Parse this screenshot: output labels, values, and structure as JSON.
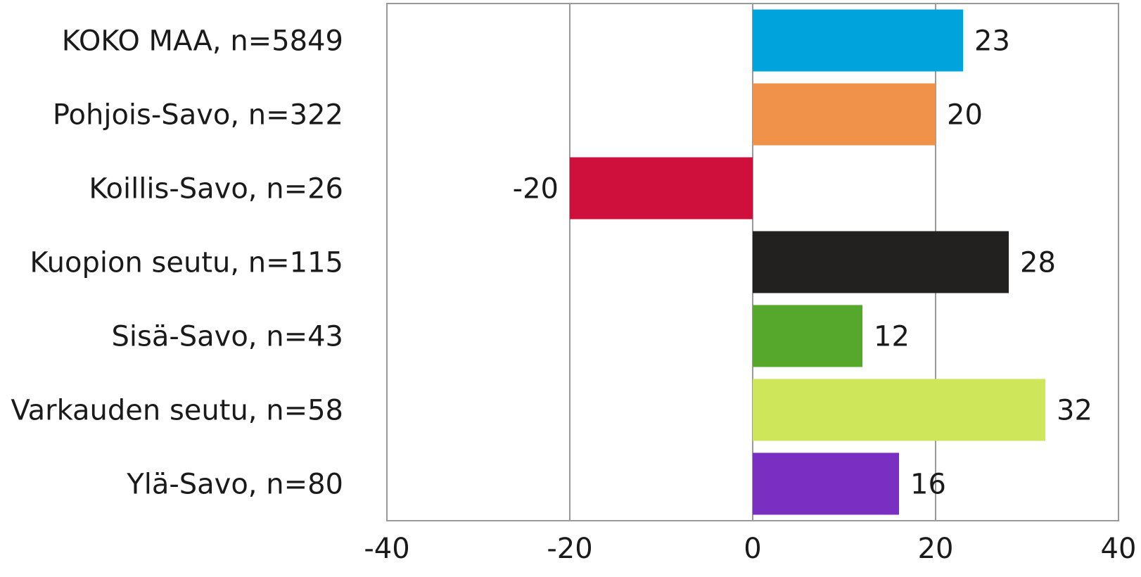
{
  "chart_data": {
    "type": "bar",
    "orientation": "horizontal",
    "categories": [
      "KOKO MAA, n=5849",
      "Pohjois-Savo, n=322",
      "Koillis-Savo, n=26",
      "Kuopion seutu, n=115",
      "Sisä-Savo, n=43",
      "Varkauden seutu, n=58",
      "Ylä-Savo, n=80"
    ],
    "values": [
      23,
      20,
      -20,
      28,
      12,
      32,
      16
    ],
    "value_labels": [
      "23",
      "20",
      "-20",
      "28",
      "12",
      "32",
      "16"
    ],
    "bar_colors": [
      "#00a3dc",
      "#f0924a",
      "#cf0f3c",
      "#222120",
      "#56a82c",
      "#cde65a",
      "#7b2fc2"
    ],
    "xlim": [
      -40,
      40
    ],
    "xticks": [
      -40,
      -20,
      0,
      20,
      40
    ],
    "xtick_labels": [
      "-40",
      "-20",
      "0",
      "20",
      "40"
    ],
    "grid": true,
    "legend": false
  }
}
